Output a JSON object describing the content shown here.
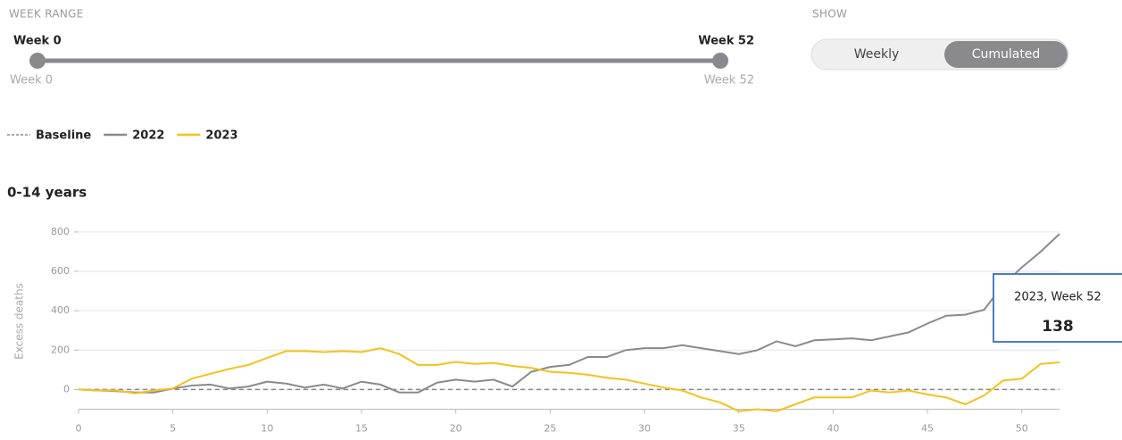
{
  "controls": {
    "week_range": {
      "title": "WEEK RANGE",
      "start": "Week 0",
      "end": "Week 52",
      "min_label": "Week 0",
      "max_label": "Week 52"
    },
    "show": {
      "title": "SHOW",
      "options": [
        "Weekly",
        "Cumulated"
      ],
      "selected": 1
    }
  },
  "chart_data": {
    "type": "line",
    "title": "0-14 years",
    "y_label": "Excess deaths",
    "x": [
      0,
      1,
      2,
      3,
      4,
      5,
      6,
      7,
      8,
      9,
      10,
      11,
      12,
      13,
      14,
      15,
      16,
      17,
      18,
      19,
      20,
      21,
      22,
      23,
      24,
      25,
      26,
      27,
      28,
      29,
      30,
      31,
      32,
      33,
      34,
      35,
      36,
      37,
      38,
      39,
      40,
      41,
      42,
      43,
      44,
      45,
      46,
      47,
      48,
      49,
      50,
      51,
      52
    ],
    "series": [
      {
        "name": "Baseline",
        "color": "#888888",
        "dashed": true,
        "values": [
          0,
          0,
          0,
          0,
          0,
          0,
          0,
          0,
          0,
          0,
          0,
          0,
          0,
          0,
          0,
          0,
          0,
          0,
          0,
          0,
          0,
          0,
          0,
          0,
          0,
          0,
          0,
          0,
          0,
          0,
          0,
          0,
          0,
          0,
          0,
          0,
          0,
          0,
          0,
          0,
          0,
          0,
          0,
          0,
          0,
          0,
          0,
          0,
          0,
          0,
          0,
          0,
          0
        ]
      },
      {
        "name": "2022",
        "color": "#8a8a8e",
        "values": [
          0,
          -5,
          -8,
          -15,
          -15,
          5,
          20,
          25,
          5,
          15,
          40,
          30,
          10,
          25,
          5,
          40,
          25,
          -15,
          -15,
          35,
          50,
          40,
          50,
          15,
          90,
          115,
          125,
          165,
          165,
          200,
          210,
          210,
          225,
          210,
          195,
          180,
          200,
          245,
          220,
          250,
          255,
          260,
          250,
          270,
          290,
          335,
          375,
          380,
          405,
          530,
          620,
          700,
          790
        ]
      },
      {
        "name": "2023",
        "color": "#f5c21b",
        "values": [
          0,
          -5,
          -5,
          -20,
          -5,
          5,
          55,
          80,
          105,
          125,
          160,
          195,
          195,
          190,
          195,
          190,
          210,
          180,
          125,
          125,
          140,
          130,
          135,
          120,
          110,
          90,
          85,
          75,
          60,
          50,
          30,
          10,
          -5,
          -40,
          -65,
          -110,
          -100,
          -110,
          -75,
          -40,
          -40,
          -40,
          -5,
          -15,
          -5,
          -25,
          -40,
          -75,
          -30,
          45,
          55,
          130,
          138
        ]
      }
    ],
    "xlim": [
      0,
      52
    ],
    "xticks": [
      0,
      5,
      10,
      15,
      20,
      25,
      30,
      35,
      40,
      45,
      50
    ],
    "ylim": [
      -100,
      820
    ],
    "yticks": [
      0,
      200,
      400,
      600,
      800
    ],
    "grid": true,
    "tooltip": {
      "label": "2023, Week 52",
      "series": 2,
      "index": 52
    }
  }
}
